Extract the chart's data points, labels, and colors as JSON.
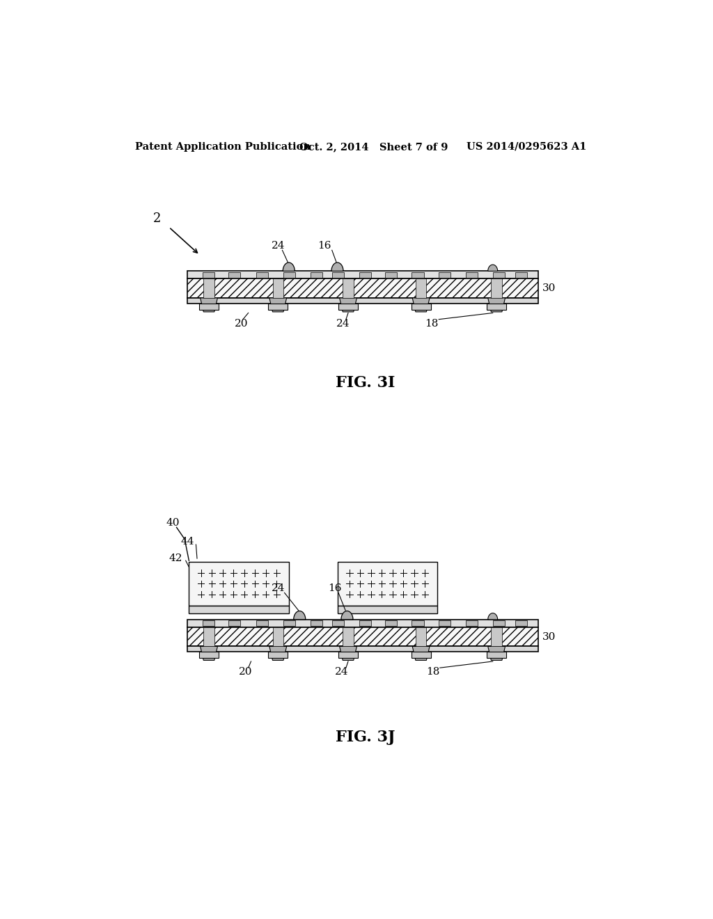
{
  "bg_color": "#ffffff",
  "header_left": "Patent Application Publication",
  "header_mid": "Oct. 2, 2014   Sheet 7 of 9",
  "header_right": "US 2014/0295623 A1",
  "fig3i_label": "FIG. 3I",
  "fig3j_label": "FIG. 3J",
  "text_color": "#000000",
  "hatch_color": "#000000",
  "sub_fc": "#ffffff",
  "sub_ec": "#000000",
  "pad_fc": "#c0c0c0",
  "bump_fc": "#b0b0b0",
  "via_fc": "#b0b0b0",
  "bot_pad_fc": "#c0c0c0",
  "chip_fc": "#f8f8f8",
  "chip_bot_fc": "#e0e0e0",
  "stripe_fc": "#d0d0d0"
}
